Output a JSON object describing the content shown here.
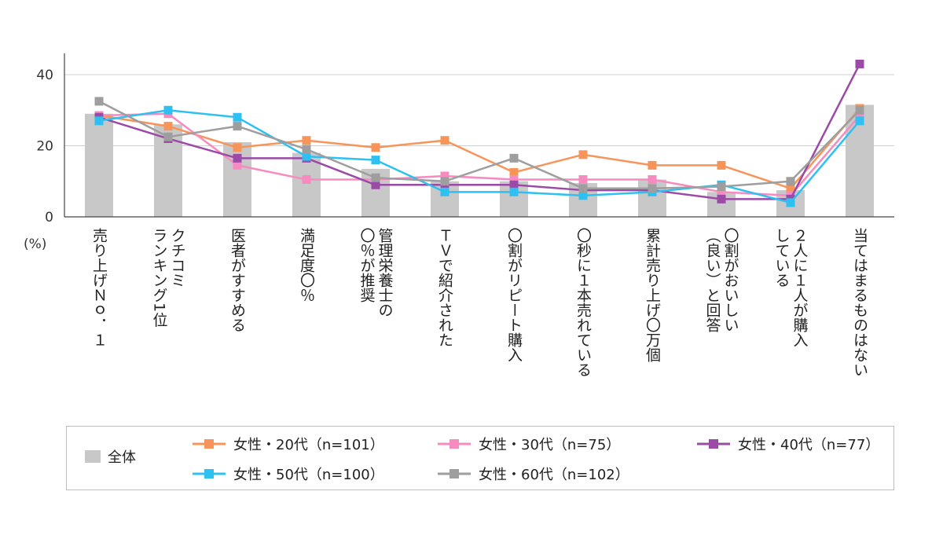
{
  "chart_data": {
    "type": "bar+line",
    "unit_label": "(%)",
    "y_ticks": [
      0,
      20,
      40
    ],
    "ylim": [
      0,
      45
    ],
    "grid": "horizontal",
    "legend_position": "bottom",
    "categories": [
      "売り上げＮｏ．１",
      "クチコミランキング1位",
      "医者がすすめる",
      "満足度〇％",
      "管理栄養士の〇％が推奨",
      "ＴＶで紹介された",
      "〇割がリピート購入",
      "〇秒に１本売れている",
      "累計売り上げ〇万個",
      "〇割がおいしい（良い）と回答",
      "２人に１人が購入している",
      "当てはまるものはない"
    ],
    "category_label_lines": [
      [
        "売り上げＮｏ．１"
      ],
      [
        "クチコミ",
        "ランキング1位"
      ],
      [
        "医者がすすめる"
      ],
      [
        "満足度〇％"
      ],
      [
        "管理栄養士の",
        "〇％が推奨"
      ],
      [
        "ＴＶで紹介された"
      ],
      [
        "〇割がリピート購入"
      ],
      [
        "〇秒に１本売れている"
      ],
      [
        "累計売り上げ〇万個"
      ],
      [
        "〇割がおいしい",
        "（良い）と回答"
      ],
      [
        "２人に１人が購入",
        "している"
      ],
      [
        "当てはまるものはない"
      ]
    ],
    "bar_series": {
      "name": "全体",
      "color": "#c8c8c8",
      "values": [
        29,
        26,
        21,
        18,
        13.5,
        10,
        10,
        9.5,
        10.5,
        7,
        7.5,
        31.5
      ]
    },
    "line_series": [
      {
        "name": "女性・20代（n=101）",
        "color": "#f7945a",
        "values": [
          28.5,
          25.5,
          19.5,
          21.5,
          19.5,
          21.5,
          12.5,
          17.5,
          14.5,
          14.5,
          8,
          30.5
        ]
      },
      {
        "name": "女性・30代（n=75）",
        "color": "#f78bc0",
        "values": [
          28.5,
          29,
          14.5,
          10.5,
          10.5,
          11.5,
          10.5,
          10.5,
          10.5,
          7,
          6,
          28.5
        ]
      },
      {
        "name": "女性・40代（n=77）",
        "color": "#9b4aa6",
        "values": [
          28,
          22,
          16.5,
          16.5,
          9,
          9,
          9,
          7.5,
          7.5,
          5,
          5,
          43
        ]
      },
      {
        "name": "女性・50代（n=100）",
        "color": "#2ec0f0",
        "values": [
          27,
          30,
          28,
          17,
          16,
          7,
          7,
          6,
          7,
          9,
          4,
          27
        ]
      },
      {
        "name": "女性・60代（n=102）",
        "color": "#9e9e9e",
        "values": [
          32.5,
          22.5,
          25.5,
          19,
          11,
          10,
          16.5,
          8,
          8,
          8.5,
          10,
          30
        ]
      }
    ]
  }
}
